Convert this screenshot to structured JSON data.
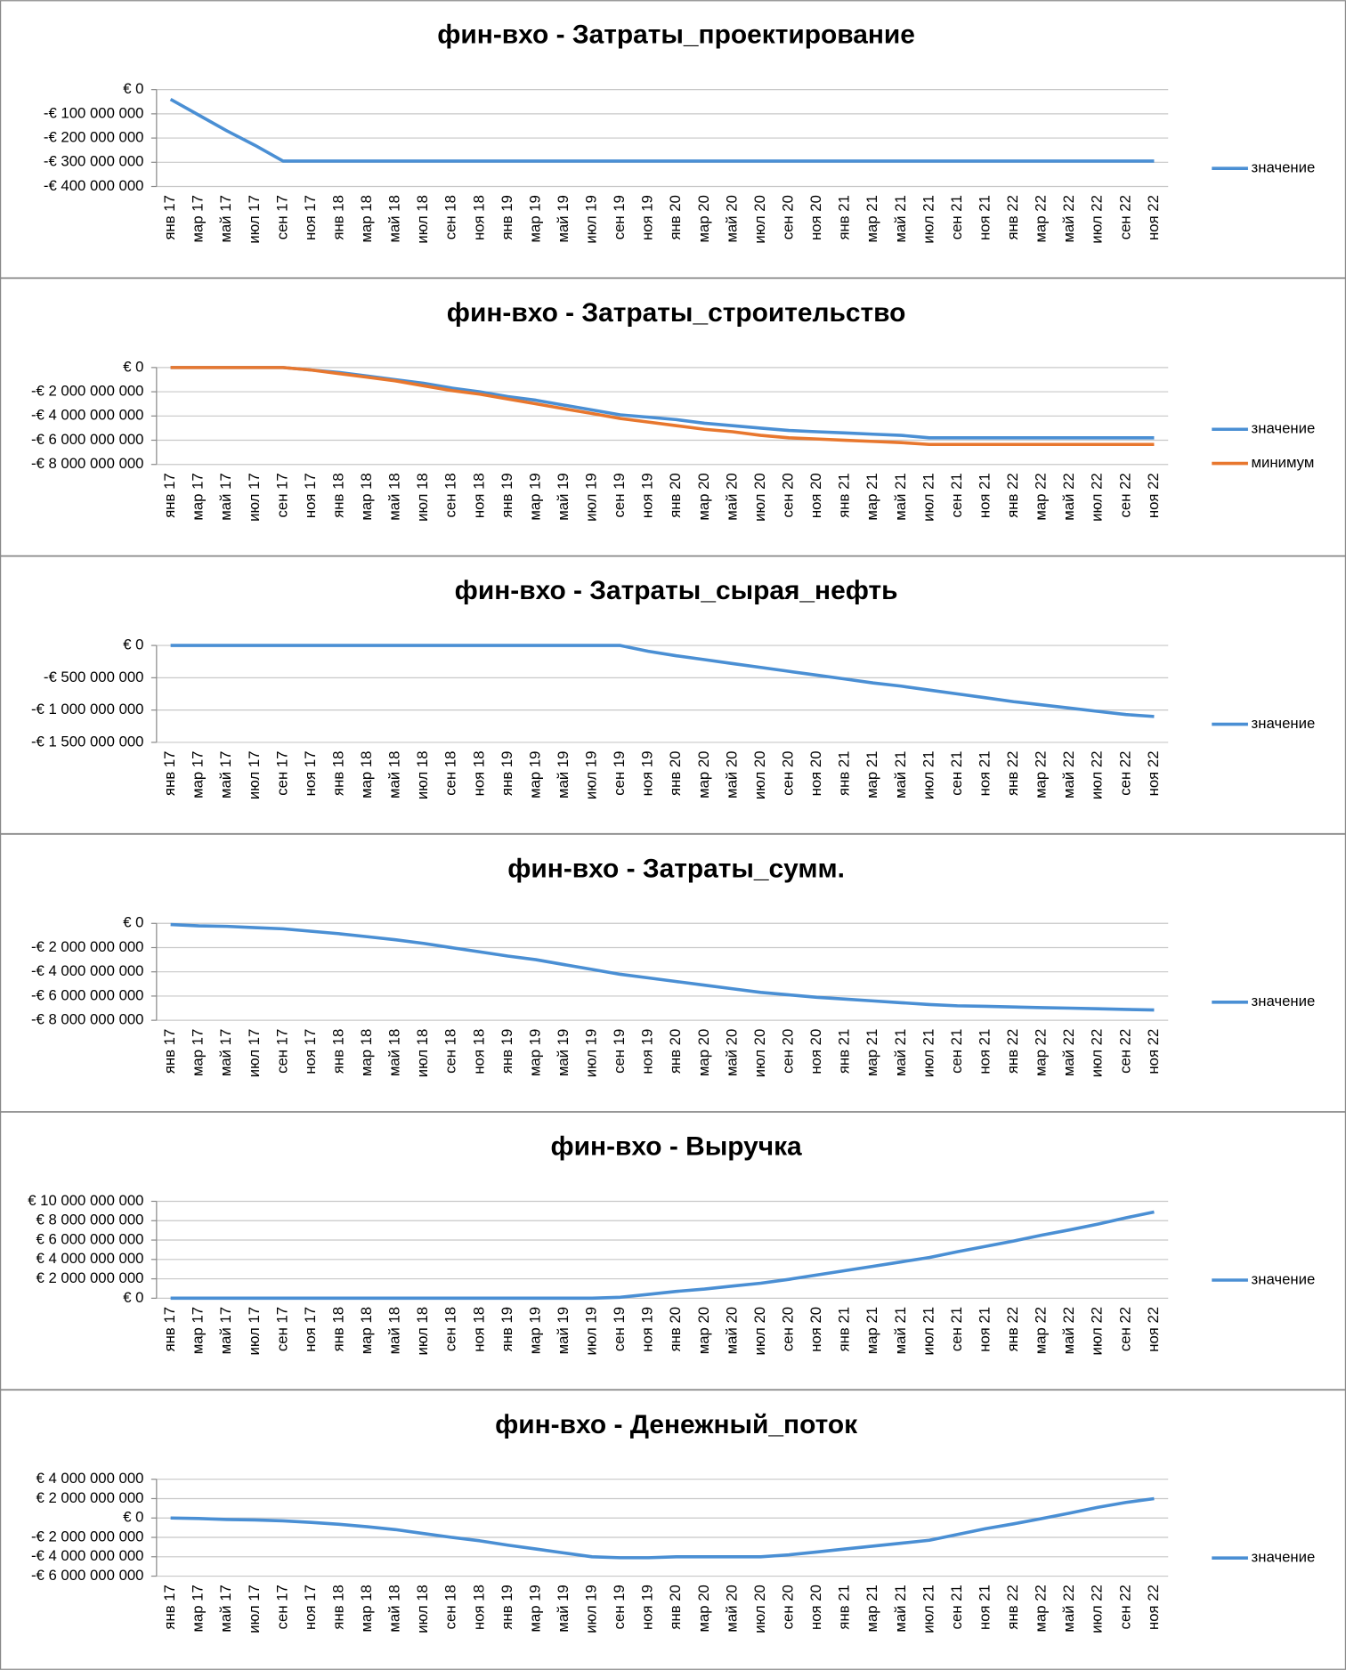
{
  "chart_data": [
    {
      "type": "line",
      "title": "фин-вхо - Затраты_проектирование",
      "categories": [
        "янв 17",
        "мар 17",
        "май 17",
        "июл 17",
        "сен 17",
        "ноя 17",
        "янв 18",
        "мар 18",
        "май 18",
        "июл 18",
        "сен 18",
        "ноя 18",
        "янв 19",
        "мар 19",
        "май 19",
        "июл 19",
        "сен 19",
        "ноя 19",
        "янв 20",
        "мар 20",
        "май 20",
        "июл 20",
        "сен 20",
        "ноя 20",
        "янв 21",
        "мар 21",
        "май 21",
        "июл 21",
        "сен 21",
        "ноя 21",
        "янв 22",
        "мар 22",
        "май 22",
        "июл 22",
        "сен 22",
        "ноя 22"
      ],
      "series": [
        {
          "name": "значение",
          "color": "#4a8fd4",
          "values": [
            -40000000,
            -105000000,
            -170000000,
            -230000000,
            -295000000,
            -295000000,
            -295000000,
            -295000000,
            -295000000,
            -295000000,
            -295000000,
            -295000000,
            -295000000,
            -295000000,
            -295000000,
            -295000000,
            -295000000,
            -295000000,
            -295000000,
            -295000000,
            -295000000,
            -295000000,
            -295000000,
            -295000000,
            -295000000,
            -295000000,
            -295000000,
            -295000000,
            -295000000,
            -295000000,
            -295000000,
            -295000000,
            -295000000,
            -295000000,
            -295000000,
            -295000000
          ]
        }
      ],
      "ylim": [
        -400000000,
        0
      ],
      "yticks": [
        {
          "value": 0,
          "label": "€ 0"
        },
        {
          "value": -100000000,
          "label": "-€ 100 000 000"
        },
        {
          "value": -200000000,
          "label": "-€ 200 000 000"
        },
        {
          "value": -300000000,
          "label": "-€ 300 000 000"
        },
        {
          "value": -400000000,
          "label": "-€ 400 000 000"
        }
      ],
      "grid": true,
      "legend": "right"
    },
    {
      "type": "line",
      "title": "фин-вхо - Затраты_строительство",
      "categories": [
        "янв 17",
        "мар 17",
        "май 17",
        "июл 17",
        "сен 17",
        "ноя 17",
        "янв 18",
        "мар 18",
        "май 18",
        "июл 18",
        "сен 18",
        "ноя 18",
        "янв 19",
        "мар 19",
        "май 19",
        "июл 19",
        "сен 19",
        "ноя 19",
        "янв 20",
        "мар 20",
        "май 20",
        "июл 20",
        "сен 20",
        "ноя 20",
        "янв 21",
        "мар 21",
        "май 21",
        "июл 21",
        "сен 21",
        "ноя 21",
        "янв 22",
        "мар 22",
        "май 22",
        "июл 22",
        "сен 22",
        "ноя 22"
      ],
      "series": [
        {
          "name": "значение",
          "color": "#4a8fd4",
          "values": [
            0,
            0,
            0,
            0,
            0,
            -200000000,
            -400000000,
            -700000000,
            -1000000000,
            -1300000000,
            -1700000000,
            -2000000000,
            -2400000000,
            -2700000000,
            -3100000000,
            -3500000000,
            -3900000000,
            -4100000000,
            -4300000000,
            -4600000000,
            -4800000000,
            -5000000000,
            -5200000000,
            -5300000000,
            -5400000000,
            -5500000000,
            -5600000000,
            -5800000000,
            -5800000000,
            -5800000000,
            -5800000000,
            -5800000000,
            -5800000000,
            -5800000000,
            -5800000000,
            -5800000000
          ]
        },
        {
          "name": "минимум",
          "color": "#e8772e",
          "values": [
            0,
            0,
            0,
            0,
            0,
            -200000000,
            -500000000,
            -800000000,
            -1100000000,
            -1500000000,
            -1900000000,
            -2200000000,
            -2600000000,
            -3000000000,
            -3400000000,
            -3800000000,
            -4200000000,
            -4500000000,
            -4800000000,
            -5100000000,
            -5300000000,
            -5600000000,
            -5800000000,
            -5900000000,
            -6000000000,
            -6100000000,
            -6200000000,
            -6350000000,
            -6350000000,
            -6350000000,
            -6350000000,
            -6350000000,
            -6350000000,
            -6350000000,
            -6350000000,
            -6350000000
          ]
        }
      ],
      "ylim": [
        -8000000000,
        0
      ],
      "yticks": [
        {
          "value": 0,
          "label": "€ 0"
        },
        {
          "value": -2000000000,
          "label": "-€ 2 000 000 000"
        },
        {
          "value": -4000000000,
          "label": "-€ 4 000 000 000"
        },
        {
          "value": -6000000000,
          "label": "-€ 6 000 000 000"
        },
        {
          "value": -8000000000,
          "label": "-€ 8 000 000 000"
        }
      ],
      "grid": true,
      "legend": "right"
    },
    {
      "type": "line",
      "title": "фин-вхо - Затраты_сырая_нефть",
      "categories": [
        "янв 17",
        "мар 17",
        "май 17",
        "июл 17",
        "сен 17",
        "ноя 17",
        "янв 18",
        "мар 18",
        "май 18",
        "июл 18",
        "сен 18",
        "ноя 18",
        "янв 19",
        "мар 19",
        "май 19",
        "июл 19",
        "сен 19",
        "ноя 19",
        "янв 20",
        "мар 20",
        "май 20",
        "июл 20",
        "сен 20",
        "ноя 20",
        "янв 21",
        "мар 21",
        "май 21",
        "июл 21",
        "сен 21",
        "ноя 21",
        "янв 22",
        "мар 22",
        "май 22",
        "июл 22",
        "сен 22",
        "ноя 22"
      ],
      "series": [
        {
          "name": "значение",
          "color": "#4a8fd4",
          "values": [
            0,
            0,
            0,
            0,
            0,
            0,
            0,
            0,
            0,
            0,
            0,
            0,
            0,
            0,
            0,
            0,
            0,
            -90000000,
            -160000000,
            -220000000,
            -280000000,
            -340000000,
            -400000000,
            -460000000,
            -520000000,
            -580000000,
            -630000000,
            -690000000,
            -750000000,
            -810000000,
            -870000000,
            -920000000,
            -970000000,
            -1020000000,
            -1070000000,
            -1100000000
          ]
        }
      ],
      "ylim": [
        -1500000000,
        0
      ],
      "yticks": [
        {
          "value": 0,
          "label": "€ 0"
        },
        {
          "value": -500000000,
          "label": "-€ 500 000 000"
        },
        {
          "value": -1000000000,
          "label": "-€ 1 000 000 000"
        },
        {
          "value": -1500000000,
          "label": "-€ 1 500 000 000"
        }
      ],
      "grid": true,
      "legend": "right"
    },
    {
      "type": "line",
      "title": "фин-вхо - Затраты_сумм.",
      "categories": [
        "янв 17",
        "мар 17",
        "май 17",
        "июл 17",
        "сен 17",
        "ноя 17",
        "янв 18",
        "мар 18",
        "май 18",
        "июл 18",
        "сен 18",
        "ноя 18",
        "янв 19",
        "мар 19",
        "май 19",
        "июл 19",
        "сен 19",
        "ноя 19",
        "янв 20",
        "мар 20",
        "май 20",
        "июл 20",
        "сен 20",
        "ноя 20",
        "янв 21",
        "мар 21",
        "май 21",
        "июл 21",
        "сен 21",
        "ноя 21",
        "янв 22",
        "мар 22",
        "май 22",
        "июл 22",
        "сен 22",
        "ноя 22"
      ],
      "series": [
        {
          "name": "значение",
          "color": "#4a8fd4",
          "values": [
            -100000000,
            -200000000,
            -250000000,
            -350000000,
            -450000000,
            -650000000,
            -850000000,
            -1100000000,
            -1350000000,
            -1650000000,
            -2000000000,
            -2350000000,
            -2700000000,
            -3000000000,
            -3400000000,
            -3800000000,
            -4200000000,
            -4500000000,
            -4800000000,
            -5100000000,
            -5400000000,
            -5700000000,
            -5900000000,
            -6100000000,
            -6250000000,
            -6400000000,
            -6550000000,
            -6700000000,
            -6800000000,
            -6850000000,
            -6900000000,
            -6950000000,
            -7000000000,
            -7050000000,
            -7100000000,
            -7150000000
          ]
        }
      ],
      "ylim": [
        -8000000000,
        0
      ],
      "yticks": [
        {
          "value": 0,
          "label": "€ 0"
        },
        {
          "value": -2000000000,
          "label": "-€ 2 000 000 000"
        },
        {
          "value": -4000000000,
          "label": "-€ 4 000 000 000"
        },
        {
          "value": -6000000000,
          "label": "-€ 6 000 000 000"
        },
        {
          "value": -8000000000,
          "label": "-€ 8 000 000 000"
        }
      ],
      "grid": true,
      "legend": "right"
    },
    {
      "type": "line",
      "title": "фин-вхо - Выручка",
      "categories": [
        "янв 17",
        "мар 17",
        "май 17",
        "июл 17",
        "сен 17",
        "ноя 17",
        "янв 18",
        "мар 18",
        "май 18",
        "июл 18",
        "сен 18",
        "ноя 18",
        "янв 19",
        "мар 19",
        "май 19",
        "июл 19",
        "сен 19",
        "ноя 19",
        "янв 20",
        "мар 20",
        "май 20",
        "июл 20",
        "сен 20",
        "ноя 20",
        "янв 21",
        "мар 21",
        "май 21",
        "июл 21",
        "сен 21",
        "ноя 21",
        "янв 22",
        "мар 22",
        "май 22",
        "июл 22",
        "сен 22",
        "ноя 22"
      ],
      "series": [
        {
          "name": "значение",
          "color": "#4a8fd4",
          "values": [
            0,
            0,
            0,
            0,
            0,
            0,
            0,
            0,
            0,
            0,
            0,
            0,
            0,
            0,
            0,
            0,
            100000000,
            400000000,
            700000000,
            950000000,
            1250000000,
            1550000000,
            1950000000,
            2400000000,
            2850000000,
            3300000000,
            3750000000,
            4200000000,
            4800000000,
            5350000000,
            5900000000,
            6500000000,
            7050000000,
            7650000000,
            8300000000,
            8900000000
          ]
        }
      ],
      "ylim": [
        0,
        10000000000
      ],
      "yticks": [
        {
          "value": 0,
          "label": "€ 0"
        },
        {
          "value": 2000000000,
          "label": "€ 2 000 000 000"
        },
        {
          "value": 4000000000,
          "label": "€ 4 000 000 000"
        },
        {
          "value": 6000000000,
          "label": "€ 6 000 000 000"
        },
        {
          "value": 8000000000,
          "label": "€ 8 000 000 000"
        },
        {
          "value": 10000000000,
          "label": "€ 10 000 000 000"
        }
      ],
      "grid": true,
      "legend": "right"
    },
    {
      "type": "line",
      "title": "фин-вхо - Денежный_поток",
      "categories": [
        "янв 17",
        "мар 17",
        "май 17",
        "июл 17",
        "сен 17",
        "ноя 17",
        "янв 18",
        "мар 18",
        "май 18",
        "июл 18",
        "сен 18",
        "ноя 18",
        "янв 19",
        "мар 19",
        "май 19",
        "июл 19",
        "сен 19",
        "ноя 19",
        "янв 20",
        "мар 20",
        "май 20",
        "июл 20",
        "сен 20",
        "ноя 20",
        "янв 21",
        "мар 21",
        "май 21",
        "июл 21",
        "сен 21",
        "ноя 21",
        "янв 22",
        "мар 22",
        "май 22",
        "июл 22",
        "сен 22",
        "ноя 22"
      ],
      "series": [
        {
          "name": "значение",
          "color": "#4a8fd4",
          "values": [
            0,
            -50000000,
            -150000000,
            -200000000,
            -300000000,
            -450000000,
            -650000000,
            -900000000,
            -1200000000,
            -1600000000,
            -2000000000,
            -2350000000,
            -2800000000,
            -3200000000,
            -3600000000,
            -4000000000,
            -4100000000,
            -4100000000,
            -4000000000,
            -4000000000,
            -4000000000,
            -4000000000,
            -3800000000,
            -3500000000,
            -3200000000,
            -2900000000,
            -2600000000,
            -2300000000,
            -1700000000,
            -1100000000,
            -600000000,
            -50000000,
            500000000,
            1100000000,
            1600000000,
            2000000000
          ]
        }
      ],
      "ylim": [
        -6000000000,
        4000000000
      ],
      "yticks": [
        {
          "value": 4000000000,
          "label": "€ 4 000 000 000"
        },
        {
          "value": 2000000000,
          "label": "€ 2 000 000 000"
        },
        {
          "value": 0,
          "label": "€ 0"
        },
        {
          "value": -2000000000,
          "label": "-€ 2 000 000 000"
        },
        {
          "value": -4000000000,
          "label": "-€ 4 000 000 000"
        },
        {
          "value": -6000000000,
          "label": "-€ 6 000 000 000"
        }
      ],
      "grid": true,
      "legend": "right"
    }
  ]
}
